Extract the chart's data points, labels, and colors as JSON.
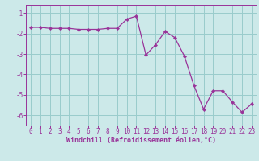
{
  "x": [
    0,
    1,
    2,
    3,
    4,
    5,
    6,
    7,
    8,
    9,
    10,
    11,
    12,
    13,
    14,
    15,
    16,
    17,
    18,
    19,
    20,
    21,
    22,
    23
  ],
  "y": [
    -1.7,
    -1.7,
    -1.75,
    -1.75,
    -1.75,
    -1.8,
    -1.8,
    -1.8,
    -1.75,
    -1.75,
    -1.3,
    -1.15,
    -3.05,
    -2.55,
    -1.9,
    -2.2,
    -3.1,
    -4.55,
    -5.7,
    -4.8,
    -4.8,
    -5.35,
    -5.85,
    -5.45
  ],
  "line_color": "#993399",
  "marker": "D",
  "marker_size": 2.2,
  "bg_color": "#cce9e9",
  "grid_color": "#99cccc",
  "xlabel": "Windchill (Refroidissement éolien,°C)",
  "xlabel_color": "#993399",
  "tick_color": "#993399",
  "spine_color": "#993399",
  "ylim": [
    -6.5,
    -0.6
  ],
  "xlim": [
    -0.5,
    23.5
  ],
  "yticks": [
    -6,
    -5,
    -4,
    -3,
    -2,
    -1
  ],
  "xticks": [
    0,
    1,
    2,
    3,
    4,
    5,
    6,
    7,
    8,
    9,
    10,
    11,
    12,
    13,
    14,
    15,
    16,
    17,
    18,
    19,
    20,
    21,
    22,
    23
  ],
  "figsize": [
    3.2,
    2.0
  ],
  "dpi": 100
}
